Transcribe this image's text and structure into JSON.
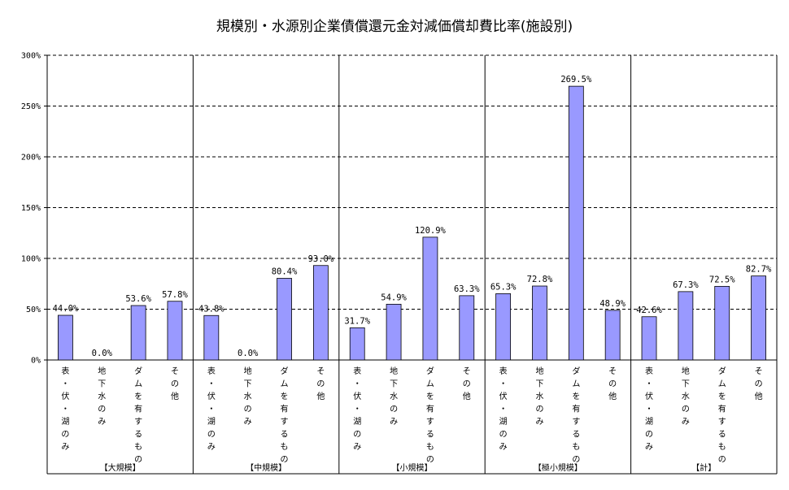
{
  "chart_data": {
    "type": "bar",
    "title": "規模別・水源別企業債償還元金対減価償却費比率(施設別)",
    "ylim": [
      0,
      300
    ],
    "yticks": [
      0,
      50,
      100,
      150,
      200,
      250,
      300
    ],
    "ytick_labels": [
      "0%",
      "50%",
      "100%",
      "150%",
      "200%",
      "250%",
      "300%"
    ],
    "grid": true,
    "bar_color": "#9999ff",
    "subcategories": [
      "表・伏・湖のみ",
      "地下水のみ",
      "ダムを有するもの",
      "その他"
    ],
    "groups": [
      {
        "label": "【大規模】",
        "values": [
          44.0,
          0.0,
          53.6,
          57.8
        ],
        "value_labels": [
          "44.0%",
          "0.0%",
          "53.6%",
          "57.8%"
        ]
      },
      {
        "label": "【中規模】",
        "values": [
          43.8,
          0.0,
          80.4,
          93.0
        ],
        "value_labels": [
          "43.8%",
          "0.0%",
          "80.4%",
          "93.0%"
        ]
      },
      {
        "label": "【小規模】",
        "values": [
          31.7,
          54.9,
          120.9,
          63.3
        ],
        "value_labels": [
          "31.7%",
          "54.9%",
          "120.9%",
          "63.3%"
        ]
      },
      {
        "label": "【極小規模】",
        "values": [
          65.3,
          72.8,
          269.5,
          48.9
        ],
        "value_labels": [
          "65.3%",
          "72.8%",
          "269.5%",
          "48.9%"
        ]
      },
      {
        "label": "【計】",
        "values": [
          42.6,
          67.3,
          72.5,
          82.7
        ],
        "value_labels": [
          "42.6%",
          "67.3%",
          "72.5%",
          "82.7%"
        ]
      }
    ]
  }
}
